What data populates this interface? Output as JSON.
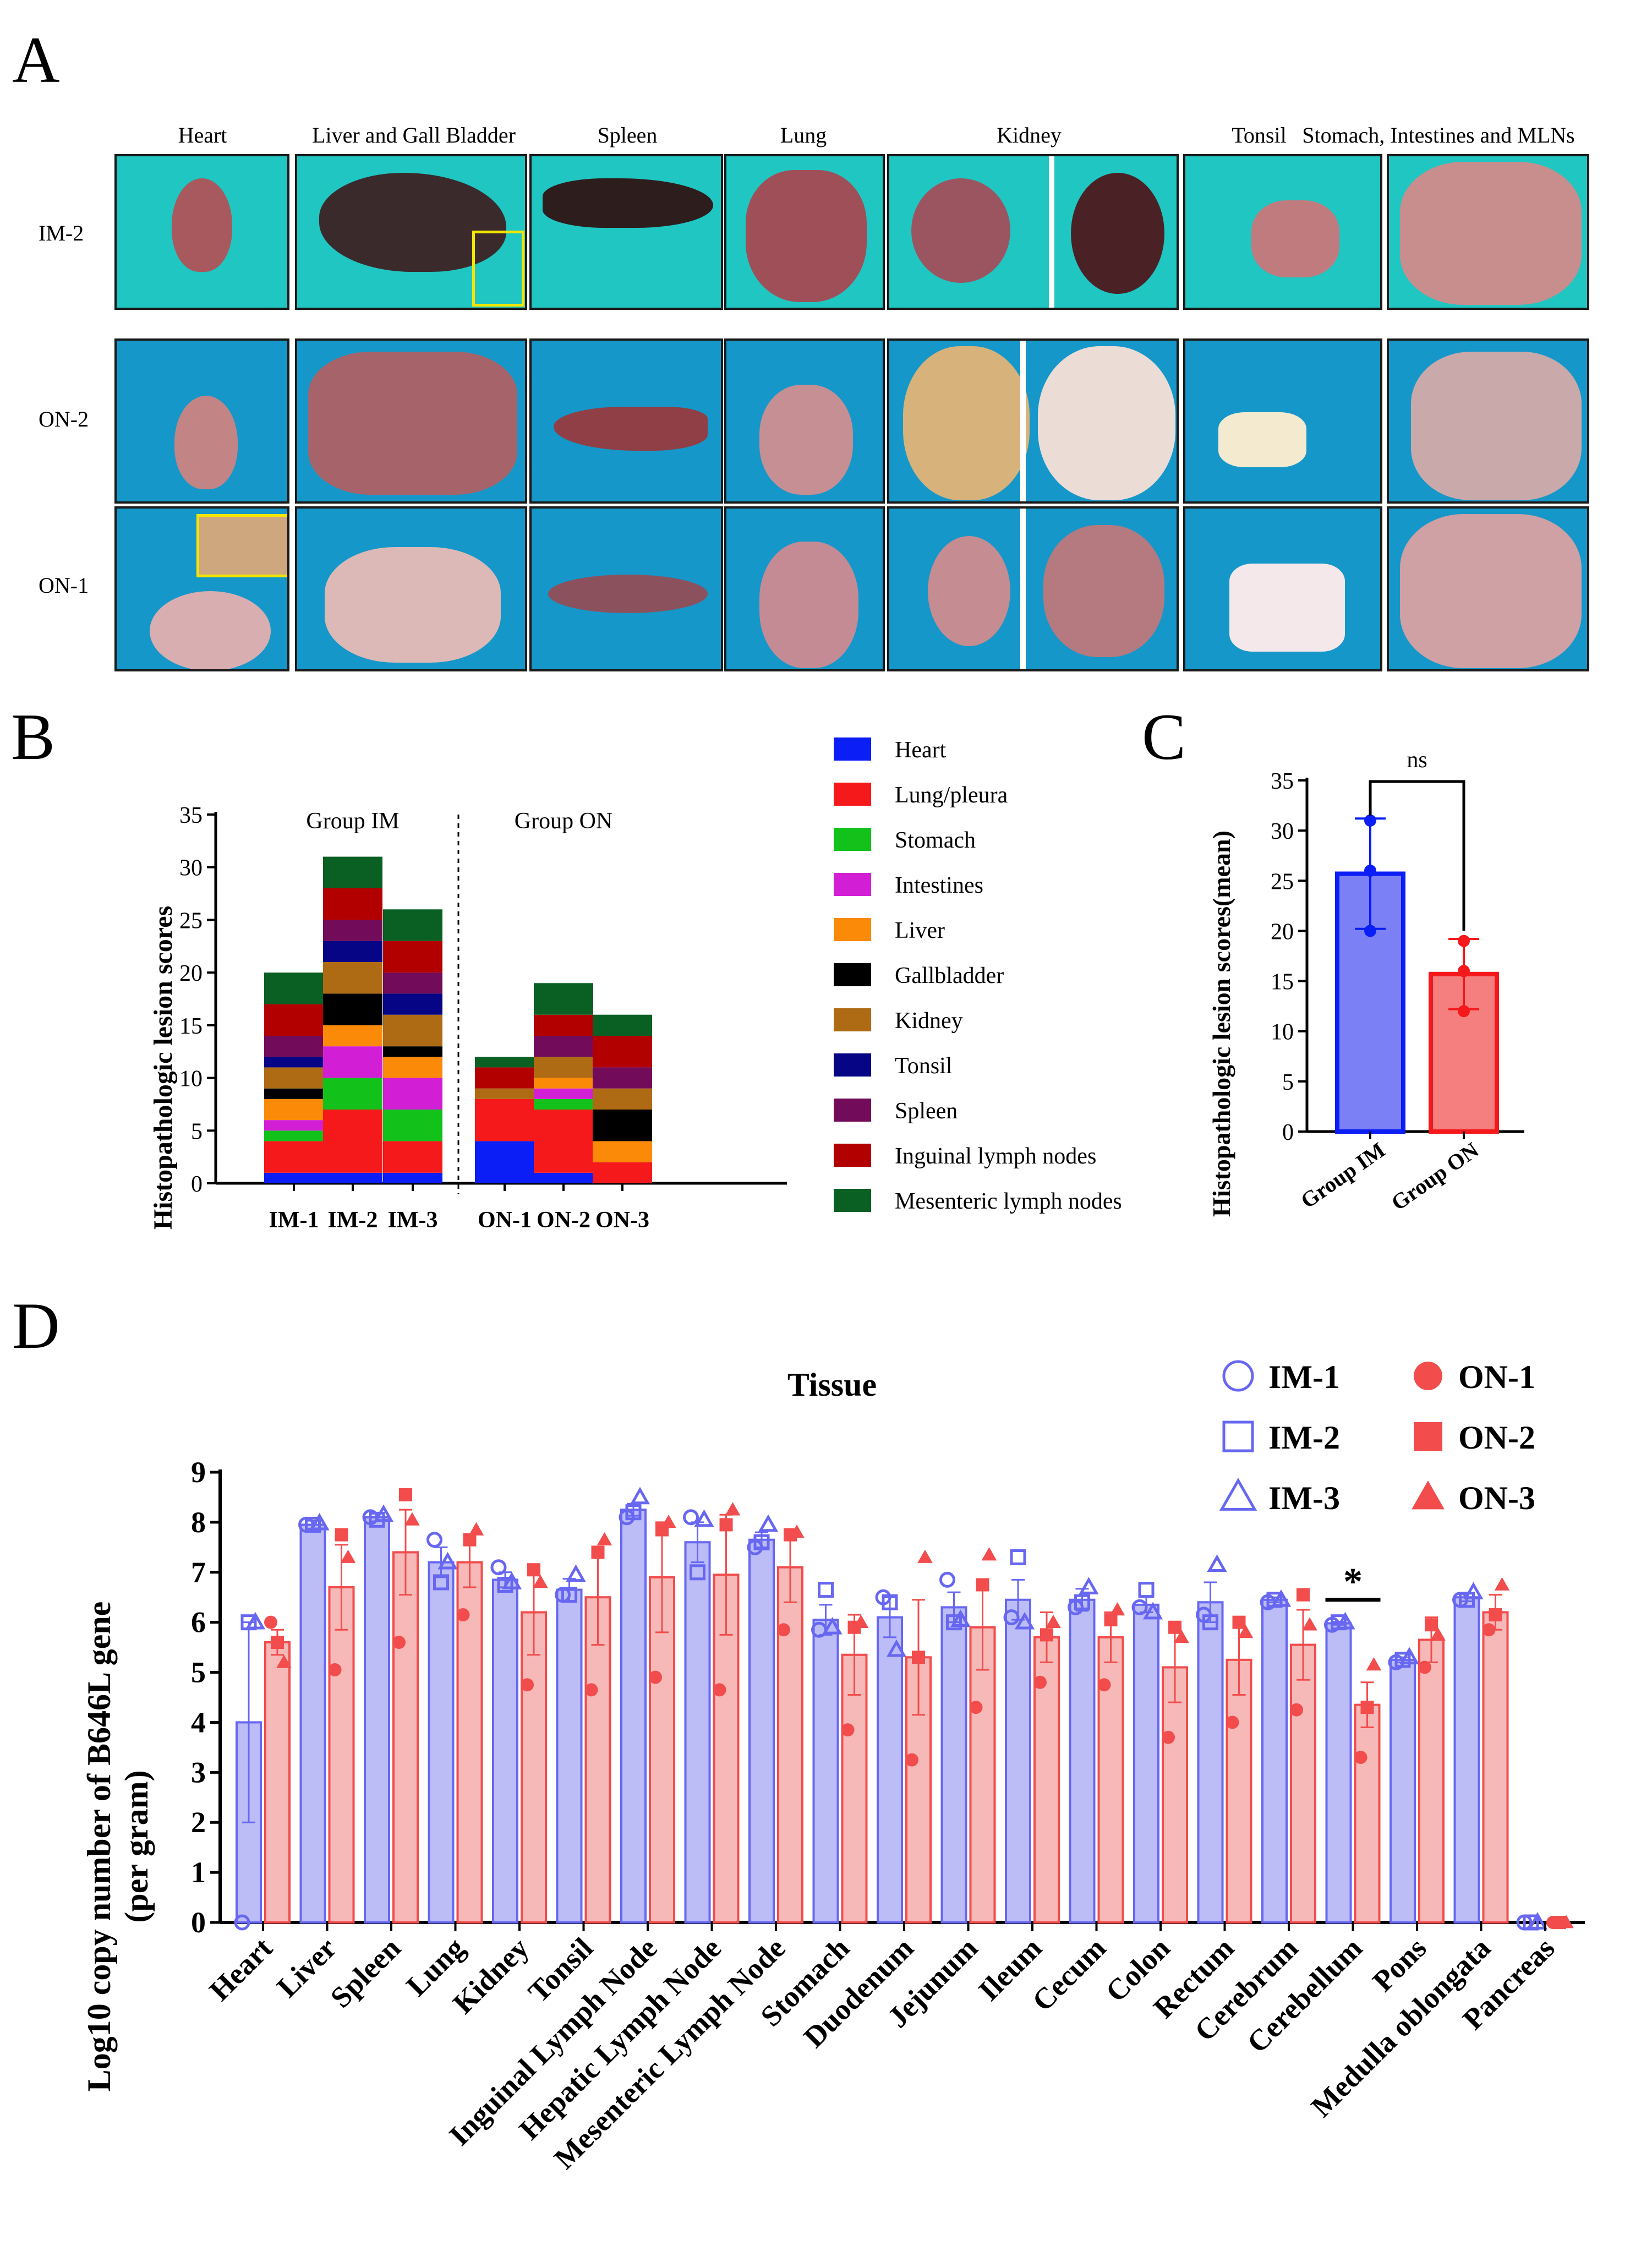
{
  "panels": {
    "a": "A",
    "b": "B",
    "c": "C",
    "d": "D"
  },
  "panel_a": {
    "columns": [
      "Heart",
      "Liver and Gall Bladder",
      "Spleen",
      "Lung",
      "Kidney",
      "Tonsil",
      "Stomach, Intestines and MLNs"
    ],
    "rows": [
      "IM-2",
      "ON-2",
      "ON-1"
    ],
    "colors": {
      "mat_cyan": "#20c6c2",
      "mat_blue": "#1597c9",
      "organ": "#b66a70",
      "highlight": "#f2e600"
    }
  },
  "chart_data": [
    {
      "id": "B",
      "type": "bar",
      "stacked": true,
      "title": "",
      "ylabel": "Histopathologic lesion scores",
      "xlabel": "",
      "ylim": [
        0,
        35
      ],
      "yticks": [
        0,
        5,
        10,
        15,
        20,
        25,
        30,
        35
      ],
      "categories": [
        "IM-1",
        "IM-2",
        "IM-3",
        "ON-1",
        "ON-2",
        "ON-3"
      ],
      "group_labels": [
        "Group IM",
        "Group ON"
      ],
      "series": [
        {
          "name": "Heart",
          "color": "#0b1ef5",
          "values": [
            1,
            1,
            1,
            4,
            1,
            0
          ]
        },
        {
          "name": "Lung/pleura",
          "color": "#f5191b",
          "values": [
            3,
            6,
            3,
            4,
            6,
            2
          ]
        },
        {
          "name": "Stomach",
          "color": "#12c21a",
          "values": [
            1,
            3,
            3,
            0,
            1,
            0
          ]
        },
        {
          "name": "Intestines",
          "color": "#d21fd6",
          "values": [
            1,
            3,
            3,
            0,
            1,
            0
          ]
        },
        {
          "name": "Liver",
          "color": "#fb8a08",
          "values": [
            2,
            2,
            2,
            0,
            1,
            2
          ]
        },
        {
          "name": "Gallbladder",
          "color": "#000000",
          "values": [
            1,
            3,
            1,
            0,
            0,
            3
          ]
        },
        {
          "name": "Kidney",
          "color": "#ae6b14",
          "values": [
            2,
            3,
            3,
            1,
            2,
            2
          ]
        },
        {
          "name": "Tonsil",
          "color": "#050585",
          "values": [
            1,
            2,
            2,
            0,
            0,
            0
          ]
        },
        {
          "name": "Spleen",
          "color": "#720c5a",
          "values": [
            2,
            2,
            2,
            0,
            2,
            2
          ]
        },
        {
          "name": "Inguinal lymph nodes",
          "color": "#b20000",
          "values": [
            3,
            3,
            3,
            2,
            2,
            3
          ]
        },
        {
          "name": "Mesenteric lymph nodes",
          "color": "#0a5f23",
          "values": [
            3,
            3,
            3,
            1,
            3,
            2
          ]
        }
      ]
    },
    {
      "id": "C",
      "type": "bar",
      "title": "",
      "ylabel": "Histopathologic lesion scores(mean)",
      "xlabel": "",
      "ylim": [
        0,
        35
      ],
      "yticks": [
        0,
        5,
        10,
        15,
        20,
        25,
        30,
        35
      ],
      "categories": [
        "Group IM",
        "Group ON"
      ],
      "values": [
        25.7,
        15.7
      ],
      "errors": [
        5.5,
        3.5
      ],
      "points": [
        [
          20,
          26,
          31
        ],
        [
          12,
          16,
          19
        ]
      ],
      "colors": [
        "#0b1ef5",
        "#f5191b"
      ],
      "fills": [
        "#7c80f5",
        "#f47f7e"
      ],
      "significance": "ns"
    },
    {
      "id": "D",
      "type": "bar",
      "title": "Tissue",
      "ylabel": "Log10 copy number of B646L gene",
      "ylabel2": "(per gram)",
      "xlabel": "",
      "ylim": [
        0,
        9
      ],
      "yticks": [
        0,
        1,
        2,
        3,
        4,
        5,
        6,
        7,
        8,
        9
      ],
      "categories": [
        "Heart",
        "Liver",
        "Spleen",
        "Lung",
        "Kidney",
        "Tonsil",
        "Inguinal Lymph Node",
        "Hepatic Lymph Node",
        "Mesenteric Lymph Node",
        "Stomach",
        "Duodenum",
        "Jejunum",
        "Ileum",
        "Cecum",
        "Colon",
        "Rectum",
        "Cerebrum",
        "Cerebellum",
        "Pons",
        "Medulla oblongata",
        "Pancreas"
      ],
      "series": [
        {
          "name": "Group IM",
          "color": "#6767f2",
          "fill": "#bcbcf6",
          "values": [
            4.0,
            7.95,
            8.1,
            7.2,
            6.85,
            6.65,
            8.25,
            7.6,
            7.65,
            6.05,
            6.1,
            6.3,
            6.45,
            6.45,
            6.35,
            6.4,
            6.45,
            5.98,
            5.25,
            6.5,
            0
          ],
          "errors": [
            2.0,
            0.08,
            0.08,
            0.3,
            0.15,
            0.22,
            0.12,
            0.4,
            0.15,
            0.3,
            0.4,
            0.3,
            0.4,
            0.22,
            0.15,
            0.4,
            0.05,
            0.03,
            0.05,
            0.08,
            0
          ],
          "points": [
            [
              0,
              6,
              6
            ],
            [
              7.95,
              7.95,
              7.98
            ],
            [
              8.1,
              8.05,
              8.15
            ],
            [
              7.65,
              6.8,
              7.2
            ],
            [
              7.1,
              6.75,
              6.8
            ],
            [
              6.55,
              6.55,
              6.95
            ],
            [
              8.1,
              8.2,
              8.5
            ],
            [
              8.1,
              7.0,
              8.05
            ],
            [
              7.5,
              7.6,
              7.95
            ],
            [
              5.85,
              6.65,
              5.9
            ],
            [
              6.5,
              6.4,
              5.45
            ],
            [
              6.85,
              6.0,
              6.05
            ],
            [
              6.1,
              7.3,
              6.0
            ],
            [
              6.3,
              6.4,
              6.7
            ],
            [
              6.3,
              6.65,
              6.2
            ],
            [
              6.15,
              6.0,
              7.15
            ],
            [
              6.4,
              6.45,
              6.45
            ],
            [
              5.95,
              6.0,
              6.0
            ],
            [
              5.2,
              5.25,
              5.3
            ],
            [
              6.45,
              6.45,
              6.6
            ],
            [
              0,
              0,
              0
            ]
          ]
        },
        {
          "name": "Group ON",
          "color": "#f24c4c",
          "fill": "#f6b9b8",
          "values": [
            5.6,
            6.7,
            7.4,
            7.2,
            6.2,
            6.5,
            6.9,
            6.95,
            7.1,
            5.35,
            5.3,
            5.9,
            5.7,
            5.7,
            5.1,
            5.25,
            5.55,
            4.35,
            5.65,
            6.2,
            0
          ],
          "errors": [
            0.25,
            0.85,
            0.85,
            0.5,
            0.85,
            0.95,
            1.1,
            1.2,
            0.7,
            0.8,
            1.15,
            0.85,
            0.5,
            0.5,
            0.7,
            0.7,
            0.7,
            0.45,
            0.45,
            0.35,
            0
          ],
          "points": [
            [
              6.0,
              5.6,
              5.2
            ],
            [
              5.05,
              7.75,
              7.3
            ],
            [
              5.6,
              8.55,
              8.05
            ],
            [
              6.15,
              7.65,
              7.85
            ],
            [
              4.75,
              7.05,
              6.8
            ],
            [
              4.65,
              7.4,
              7.65
            ],
            [
              4.9,
              7.85,
              8.0
            ],
            [
              4.65,
              7.95,
              8.25
            ],
            [
              5.85,
              7.75,
              7.8
            ],
            [
              3.85,
              5.9,
              6.0
            ],
            [
              3.25,
              5.3,
              7.3
            ],
            [
              4.3,
              6.75,
              7.35
            ],
            [
              4.8,
              5.75,
              6.0
            ],
            [
              4.75,
              6.05,
              6.25
            ],
            [
              3.7,
              5.9,
              5.7
            ],
            [
              4.0,
              6.0,
              5.8
            ],
            [
              4.25,
              6.55,
              5.95
            ],
            [
              3.3,
              4.3,
              5.15
            ],
            [
              5.1,
              5.95,
              5.75
            ],
            [
              5.85,
              6.15,
              6.75
            ],
            [
              0,
              0,
              0
            ]
          ]
        }
      ],
      "significance": {
        "category": "Cerebellum",
        "label": "*"
      },
      "legend": [
        "IM-1",
        "IM-2",
        "IM-3",
        "ON-1",
        "ON-2",
        "ON-3"
      ]
    }
  ]
}
